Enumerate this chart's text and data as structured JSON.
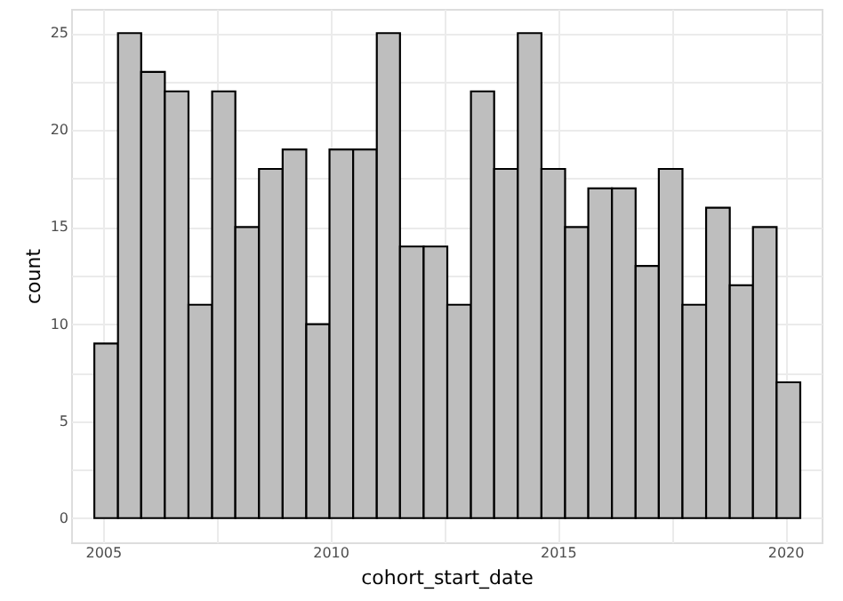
{
  "chart_data": {
    "type": "histogram",
    "xlabel": "cohort_start_date",
    "ylabel": "count",
    "bins": [
      2004.81,
      2005.33,
      2005.84,
      2006.36,
      2006.88,
      2007.4,
      2007.91,
      2008.43,
      2008.95,
      2009.47,
      2009.98,
      2010.5,
      2011.02,
      2011.53,
      2012.05,
      2012.57,
      2013.09,
      2013.6,
      2014.12,
      2014.64,
      2015.16,
      2015.67,
      2016.19,
      2016.71,
      2017.22,
      2017.74,
      2018.26,
      2018.78,
      2019.29,
      2019.81,
      2020.33
    ],
    "values": [
      9,
      25,
      23,
      22,
      11,
      22,
      15,
      18,
      19,
      10,
      19,
      19,
      25,
      14,
      14,
      11,
      22,
      18,
      25,
      18,
      15,
      17,
      17,
      13,
      18,
      11,
      16,
      12,
      15,
      7
    ],
    "color": "#bebebe",
    "xlim": [
      2004.3,
      2020.8
    ],
    "ylim": [
      -1.25,
      26.25
    ],
    "xticks": [
      2005,
      {
        "value": 2007.5,
        "label": null
      },
      2010,
      {
        "value": 2012.5,
        "label": null
      },
      2015,
      {
        "value": 2017.5,
        "label": null
      },
      2020
    ],
    "yticks": [
      0,
      {
        "value": 2.5,
        "label": null
      },
      5,
      {
        "value": 7.5,
        "label": null
      },
      10,
      {
        "value": 12.5,
        "label": null
      },
      15,
      {
        "value": 17.5,
        "label": null
      },
      20,
      {
        "value": 22.5,
        "label": null
      },
      25
    ],
    "grid": true
  }
}
